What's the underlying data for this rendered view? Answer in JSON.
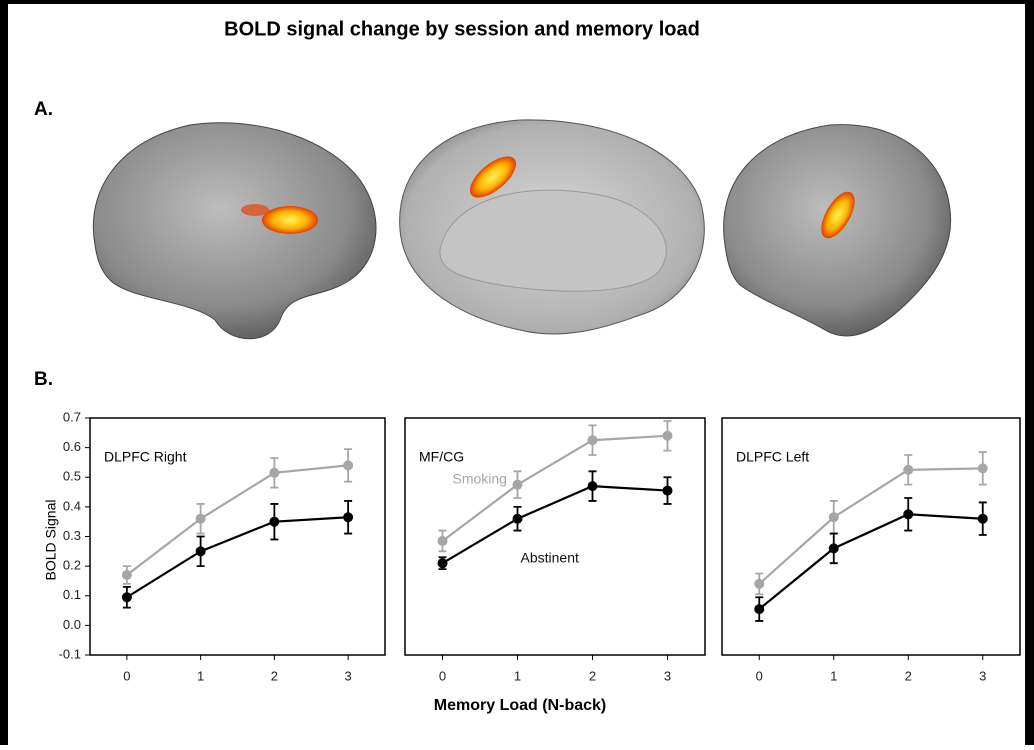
{
  "figure": {
    "title": "BOLD signal change by session and memory load",
    "panel_a": "A.",
    "panel_b": "B.",
    "xlabel": "Memory Load (N-back)",
    "ylabel": "BOLD Signal"
  },
  "chart_data": [
    {
      "type": "line",
      "title": "DLPFC Right",
      "categories": [
        "0",
        "1",
        "2",
        "3"
      ],
      "ylim": [
        -0.1,
        0.7
      ],
      "yticks": [
        -0.1,
        {
          "value": 0,
          "label": "0.0"
        },
        0.1,
        0.2,
        0.3,
        0.4,
        0.5,
        0.6,
        0.7
      ],
      "series": [
        {
          "color": "#a6a6a6",
          "values": [
            0.17,
            0.36,
            0.515,
            0.54
          ],
          "errors": [
            0.03,
            0.05,
            0.05,
            0.055
          ]
        },
        {
          "color": "#000000",
          "values": [
            0.095,
            0.25,
            0.35,
            0.365
          ],
          "errors": [
            0.035,
            0.05,
            0.06,
            0.055
          ]
        }
      ]
    },
    {
      "type": "line",
      "title": "MF/CG",
      "categories": [
        "0",
        "1",
        "2",
        "3"
      ],
      "ylim": [
        -0.1,
        0.7
      ],
      "series": [
        {
          "name": "Smoking",
          "color": "#a6a6a6",
          "values": [
            0.285,
            0.475,
            0.625,
            0.64
          ],
          "errors": [
            0.035,
            0.045,
            0.05,
            0.05
          ]
        },
        {
          "name": "Abstinent",
          "color": "#000000",
          "values": [
            0.21,
            0.36,
            0.47,
            0.455
          ],
          "errors": [
            0.02,
            0.04,
            0.05,
            0.045
          ]
        }
      ]
    },
    {
      "type": "line",
      "title": "DLPFC Left",
      "categories": [
        "0",
        "1",
        "2",
        "3"
      ],
      "ylim": [
        -0.1,
        0.7
      ],
      "series": [
        {
          "color": "#a6a6a6",
          "values": [
            0.14,
            0.365,
            0.525,
            0.53
          ],
          "errors": [
            0.035,
            0.055,
            0.05,
            0.055
          ]
        },
        {
          "color": "#000000",
          "values": [
            0.055,
            0.26,
            0.375,
            0.36
          ],
          "errors": [
            0.04,
            0.05,
            0.055,
            0.055
          ]
        }
      ]
    }
  ]
}
